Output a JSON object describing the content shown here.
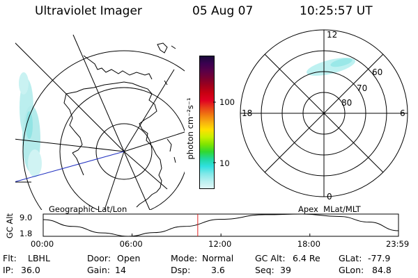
{
  "header": {
    "title": "Ultraviolet Imager",
    "date": "05 Aug 07",
    "time": "10:25:57 UT"
  },
  "colorbar": {
    "unit_label": "photon cm⁻²s⁻¹",
    "ticks": [
      "100",
      "10"
    ],
    "colors": [
      "#1a0a3a",
      "#3b0050",
      "#5a0048",
      "#7a0030",
      "#a0001c",
      "#c80012",
      "#e00022",
      "#e8401a",
      "#f07a10",
      "#f8b010",
      "#ffe000",
      "#c8f000",
      "#80e400",
      "#30d830",
      "#20d8a0",
      "#30e0e0",
      "#80e8e8",
      "#b8f0f0",
      "#e0f8f8"
    ]
  },
  "geo_panel": {
    "label": "Geographic Lat/Lon"
  },
  "mlt_panel": {
    "label": "Apex  MLat/MLT",
    "hour_labels": {
      "top": "12",
      "left": "18",
      "right": "6",
      "bottom": "0"
    },
    "lat_labels": [
      "60",
      "70",
      "80"
    ]
  },
  "altitude_plot": {
    "y_title": "GC Alt",
    "y_ticks": [
      "9.0",
      "1.8"
    ],
    "x_ticks": [
      "00:00",
      "06:00",
      "12:00",
      "18:00",
      "23:59"
    ],
    "series": [
      {
        "time": "00:00",
        "alt": 7.2
      },
      {
        "time": "02:00",
        "alt": 5.0
      },
      {
        "time": "04:00",
        "alt": 2.9
      },
      {
        "time": "05:45",
        "alt": 1.8
      },
      {
        "time": "07:30",
        "alt": 3.0
      },
      {
        "time": "09:30",
        "alt": 5.0
      },
      {
        "time": "12:00",
        "alt": 7.3
      },
      {
        "time": "15:00",
        "alt": 8.8
      },
      {
        "time": "17:30",
        "alt": 9.0
      },
      {
        "time": "20:00",
        "alt": 8.2
      },
      {
        "time": "22:00",
        "alt": 6.4
      },
      {
        "time": "23:59",
        "alt": 3.6
      }
    ],
    "current_time": "10:25:57"
  },
  "info": {
    "flt_label": "Flt:",
    "flt_value": "LBHL",
    "door_label": "Door:",
    "door_value": "Open",
    "mode_label": "Mode:",
    "mode_value": "Normal",
    "gcalt_label": "GC Alt:",
    "gcalt_value": "6.4 Re",
    "glat_label": "GLat:",
    "glat_value": "-77.9",
    "ip_label": "IP:",
    "ip_value": "36.0",
    "gain_label": "Gain:",
    "gain_value": "14",
    "dsp_label": "Dsp:",
    "dsp_value": "3.6",
    "seq_label": "Seq:",
    "seq_value": "39",
    "glon_label": "GLon:",
    "glon_value": "84.8"
  }
}
